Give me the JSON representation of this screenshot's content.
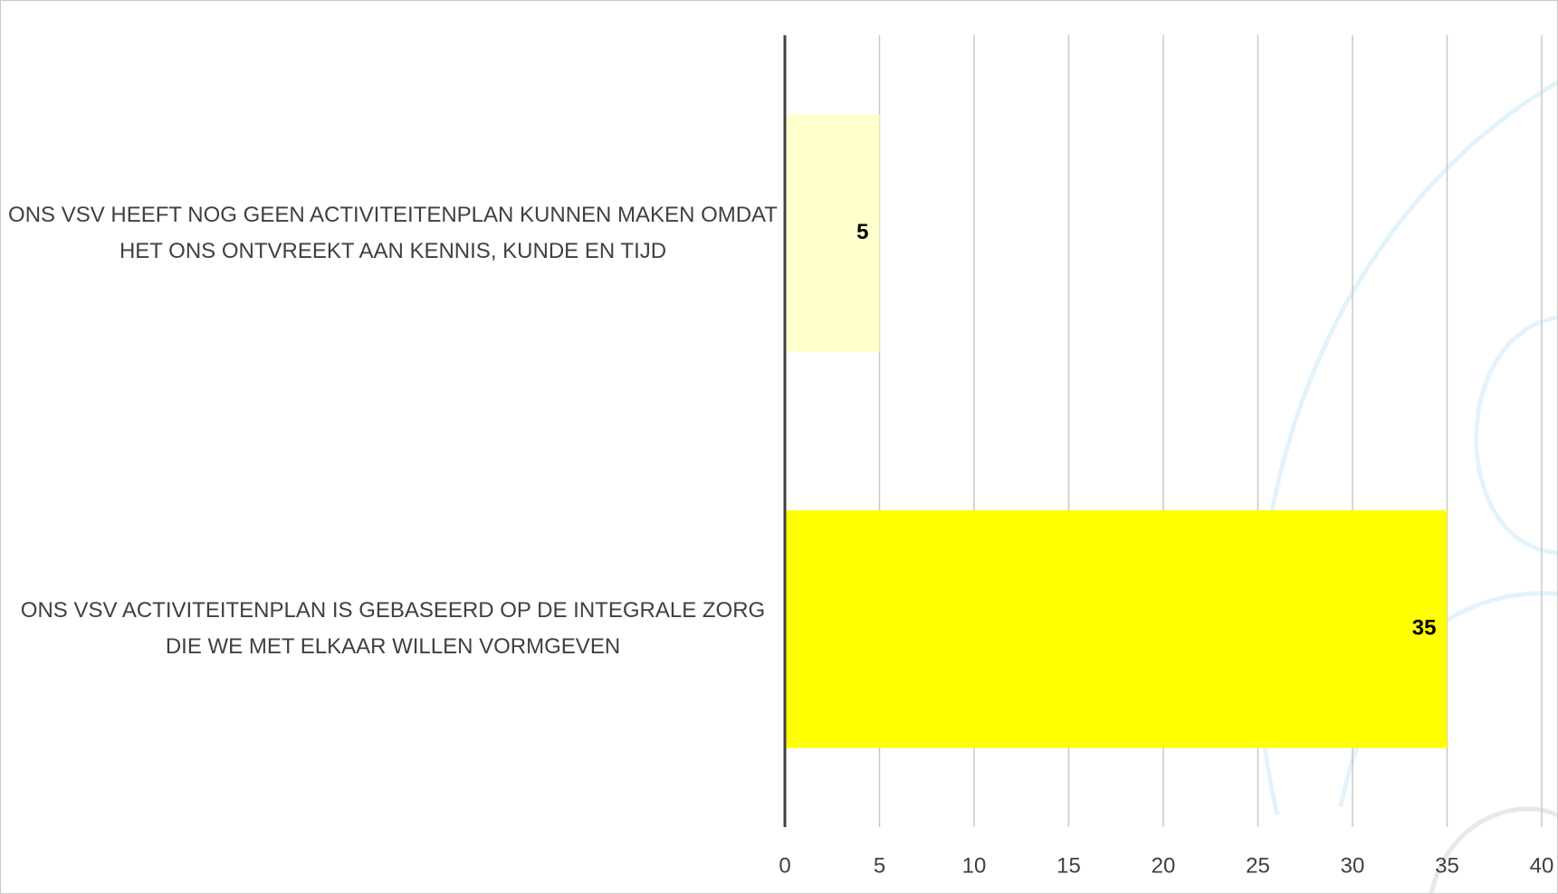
{
  "chart_data": {
    "type": "barh",
    "categories": [
      "ONS VSV HEEFT NOG GEEN ACTIVITEITENPLAN KUNNEN MAKEN OMDAT HET ONS ONTVREEKT AAN KENNIS, KUNDE EN TIJD",
      "ONS VSV ACTIVITEITENPLAN IS GEBASEERD OP DE INTEGRALE ZORG DIE WE MET ELKAAR WILLEN VORMGEVEN"
    ],
    "values": [
      5,
      35
    ],
    "colors": [
      "#ffffcc",
      "#ffff00"
    ],
    "xlim": [
      0,
      40
    ],
    "xticks": [
      0,
      5,
      10,
      15,
      20,
      25,
      30,
      35,
      40
    ],
    "grid": true
  }
}
